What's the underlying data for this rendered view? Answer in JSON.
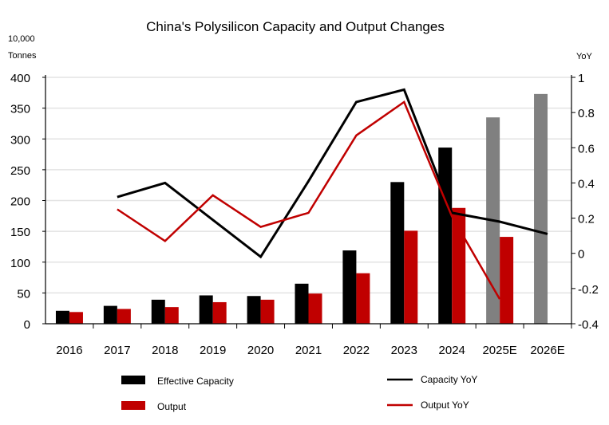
{
  "chart_data": {
    "type": "bar+line",
    "title": "China's Polysilicon Capacity and Output Changes",
    "ylabel_left": [
      "10,000",
      "Tonnes"
    ],
    "ylabel_right": "YoY",
    "categories": [
      "2016",
      "2017",
      "2018",
      "2019",
      "2020",
      "2021",
      "2022",
      "2023",
      "2024",
      "2025E",
      "2026E"
    ],
    "ylim_left": [
      0,
      400
    ],
    "yticks_left": [
      "0",
      "50",
      "100",
      "150",
      "200",
      "250",
      "300",
      "350",
      "400"
    ],
    "ylim_right": [
      -0.4,
      1
    ],
    "yticks_right": [
      "-0.4",
      "-0.2",
      "0",
      "0.2",
      "0.4",
      "0.6",
      "0.8",
      "1"
    ],
    "grid": true,
    "bar_series": [
      {
        "name": "Effective Capacity",
        "color": "#000000",
        "forecast_color": "#808080",
        "values": [
          21,
          29,
          39,
          46,
          45,
          65,
          119,
          230,
          286,
          335,
          373
        ]
      },
      {
        "name": "Output",
        "color": "#c00000",
        "values": [
          19,
          24,
          27,
          35,
          39,
          49,
          82,
          151,
          188,
          141,
          null
        ]
      }
    ],
    "line_series": [
      {
        "name": "Capacity YoY",
        "color": "#000000",
        "values": [
          null,
          0.32,
          0.4,
          0.19,
          -0.02,
          0.41,
          0.86,
          0.93,
          0.23,
          0.18,
          0.11
        ]
      },
      {
        "name": "Output YoY",
        "color": "#c00000",
        "values": [
          null,
          0.25,
          0.07,
          0.33,
          0.15,
          0.23,
          0.67,
          0.86,
          0.21,
          -0.26,
          null
        ]
      }
    ],
    "forecast_categories": [
      "2025E",
      "2026E"
    ],
    "legend_position": "bottom"
  }
}
